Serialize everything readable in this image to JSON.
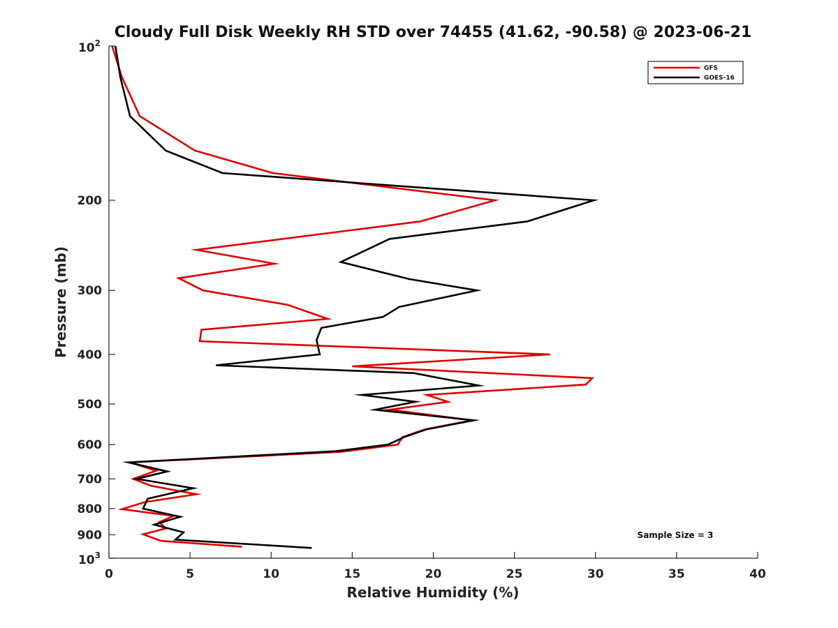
{
  "chart_data": {
    "type": "line",
    "title": "Cloudy Full Disk Weekly RH STD over 74455 (41.62, -90.58) @ 2023-06-21",
    "xlabel": "Relative Humidity (%)",
    "ylabel": "Pressure (mb)",
    "xlim": [
      0,
      40
    ],
    "ylim": [
      100,
      1000
    ],
    "y_scale": "log",
    "y_reversed": true,
    "x_ticks": [
      "0",
      "5",
      "10",
      "15",
      "20",
      "25",
      "30",
      "35",
      "40"
    ],
    "y_ticks": [
      {
        "value": 100,
        "base": "10",
        "exp": "2"
      },
      {
        "value": 200,
        "label": "200"
      },
      {
        "value": 300,
        "label": "300"
      },
      {
        "value": 400,
        "label": "400"
      },
      {
        "value": 500,
        "label": "500"
      },
      {
        "value": 600,
        "label": "600"
      },
      {
        "value": 700,
        "label": "700"
      },
      {
        "value": 800,
        "label": "800"
      },
      {
        "value": 900,
        "label": "900"
      },
      {
        "value": 1000,
        "base": "10",
        "exp": "3"
      }
    ],
    "grid": false,
    "legend_position": "top-right",
    "annotation": "Sample Size = 3",
    "series": [
      {
        "name": "GFS",
        "color": "#e00000",
        "points": [
          [
            0.2,
            100
          ],
          [
            0.8,
            115
          ],
          [
            1.9,
            137
          ],
          [
            5.3,
            160
          ],
          [
            10.1,
            177
          ],
          [
            23.8,
            200
          ],
          [
            19.2,
            220
          ],
          [
            5.4,
            250
          ],
          [
            10.2,
            266
          ],
          [
            4.3,
            284
          ],
          [
            5.8,
            300
          ],
          [
            11.0,
            320
          ],
          [
            13.5,
            341
          ],
          [
            5.7,
            358
          ],
          [
            5.6,
            377
          ],
          [
            27.2,
            400
          ],
          [
            15.0,
            422
          ],
          [
            29.8,
            445
          ],
          [
            29.4,
            458
          ],
          [
            19.6,
            480
          ],
          [
            20.9,
            495
          ],
          [
            17.3,
            513
          ],
          [
            22.4,
            538
          ],
          [
            19.5,
            560
          ],
          [
            18.1,
            580
          ],
          [
            17.8,
            600
          ],
          [
            14.3,
            620
          ],
          [
            1.3,
            650
          ],
          [
            2.9,
            675
          ],
          [
            1.5,
            700
          ],
          [
            2.6,
            722
          ],
          [
            5.4,
            750
          ],
          [
            2.2,
            777
          ],
          [
            0.8,
            802
          ],
          [
            4.0,
            827
          ],
          [
            3.1,
            850
          ],
          [
            3.5,
            875
          ],
          [
            2.1,
            898
          ],
          [
            3.2,
            925
          ],
          [
            8.2,
            950
          ]
        ]
      },
      {
        "name": "GOES-16",
        "color": "#000000",
        "points": [
          [
            0.4,
            100
          ],
          [
            0.7,
            115
          ],
          [
            1.3,
            137
          ],
          [
            3.5,
            160
          ],
          [
            7.0,
            177
          ],
          [
            29.9,
            200
          ],
          [
            25.8,
            220
          ],
          [
            17.3,
            238
          ],
          [
            14.3,
            264
          ],
          [
            18.5,
            285
          ],
          [
            22.7,
            300
          ],
          [
            17.9,
            323
          ],
          [
            16.9,
            338
          ],
          [
            13.1,
            355
          ],
          [
            12.8,
            375
          ],
          [
            13.0,
            400
          ],
          [
            6.6,
            420
          ],
          [
            18.8,
            435
          ],
          [
            22.8,
            460
          ],
          [
            15.6,
            480
          ],
          [
            18.9,
            495
          ],
          [
            16.4,
            513
          ],
          [
            22.5,
            538
          ],
          [
            19.6,
            560
          ],
          [
            18.2,
            580
          ],
          [
            17.2,
            600
          ],
          [
            14.0,
            618
          ],
          [
            1.2,
            650
          ],
          [
            3.6,
            677
          ],
          [
            1.7,
            700
          ],
          [
            5.2,
            730
          ],
          [
            2.4,
            765
          ],
          [
            2.1,
            800
          ],
          [
            4.4,
            830
          ],
          [
            2.8,
            860
          ],
          [
            4.6,
            890
          ],
          [
            4.1,
            920
          ],
          [
            12.5,
            955
          ]
        ]
      }
    ]
  }
}
